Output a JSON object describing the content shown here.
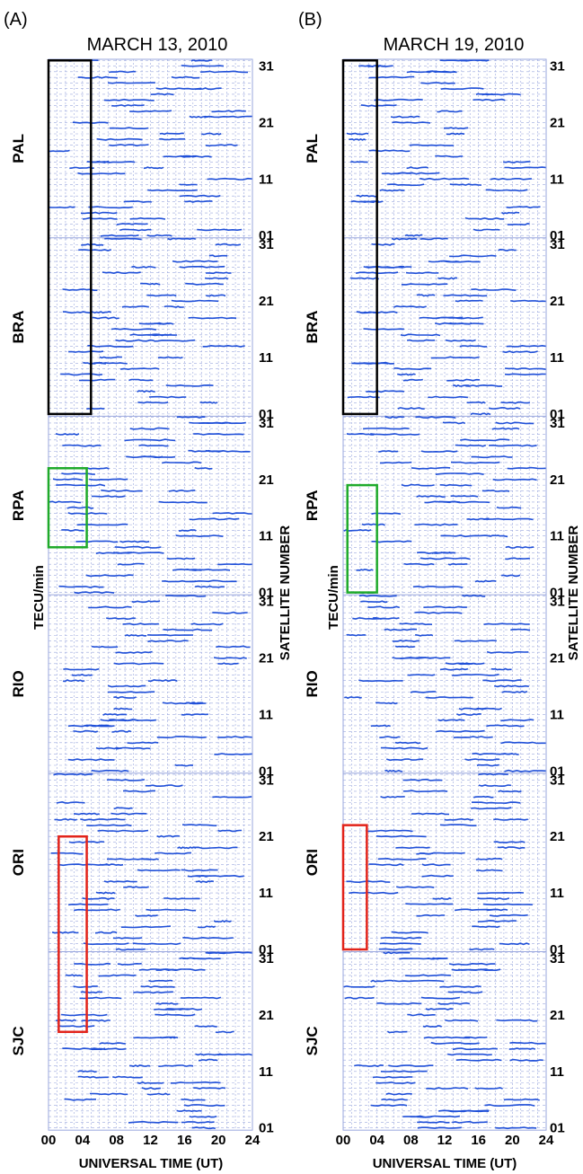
{
  "chart_data": [
    {
      "type": "line",
      "panel_label": "(A)",
      "title": "MARCH 13, 2010",
      "xlabel": "UNIVERSAL TIME (UT)",
      "ylabel_left": "TECU/min",
      "ylabel_right": "SATELLITE NUMBER",
      "x_ticks": [
        "00",
        "04",
        "08",
        "12",
        "16",
        "20",
        "24"
      ],
      "xlim": [
        0,
        24
      ],
      "stations": [
        "PAL",
        "BRA",
        "RPA",
        "RIO",
        "ORI",
        "SJC"
      ],
      "station_y_ticks": [
        "31",
        "21",
        "11",
        "01"
      ],
      "satellite_range": [
        1,
        32
      ],
      "grid": true,
      "highlights": [
        {
          "color": "#000000",
          "stations": [
            "PAL",
            "BRA"
          ],
          "x_range": [
            0,
            5
          ],
          "satellites": [
            1,
            32
          ]
        },
        {
          "color": "#1faa2a",
          "stations": [
            "RPA"
          ],
          "x_range": [
            0,
            4.5
          ],
          "satellites": [
            9,
            23
          ]
        },
        {
          "color": "#e2231a",
          "stations": [
            "ORI",
            "SJC"
          ],
          "x_range": [
            1.2,
            4.5
          ],
          "satellites": [
            18,
            21
          ]
        }
      ]
    },
    {
      "type": "line",
      "panel_label": "(B)",
      "title": "MARCH 19, 2010",
      "xlabel": "UNIVERSAL TIME (UT)",
      "ylabel_left": "TECU/min",
      "ylabel_right": "SATELLITE NUMBER",
      "x_ticks": [
        "00",
        "04",
        "08",
        "12",
        "16",
        "20",
        "24"
      ],
      "xlim": [
        0,
        24
      ],
      "stations": [
        "PAL",
        "BRA",
        "RPA",
        "RIO",
        "ORI",
        "SJC"
      ],
      "station_y_ticks": [
        "31",
        "21",
        "11",
        "01"
      ],
      "satellite_range": [
        1,
        32
      ],
      "grid": true,
      "highlights": [
        {
          "color": "#000000",
          "stations": [
            "PAL",
            "BRA"
          ],
          "x_range": [
            0,
            4
          ],
          "satellites": [
            1,
            32
          ]
        },
        {
          "color": "#1faa2a",
          "stations": [
            "RPA"
          ],
          "x_range": [
            0.5,
            4
          ],
          "satellites": [
            1,
            20
          ]
        },
        {
          "color": "#e2231a",
          "stations": [
            "ORI"
          ],
          "x_range": [
            0,
            2.8
          ],
          "satellites": [
            1,
            23
          ]
        }
      ]
    }
  ],
  "colors": {
    "trace": "#1f4fd8",
    "grid": "#9aa7de",
    "black_box": "#000000",
    "green_box": "#1faa2a",
    "red_box": "#e2231a"
  }
}
